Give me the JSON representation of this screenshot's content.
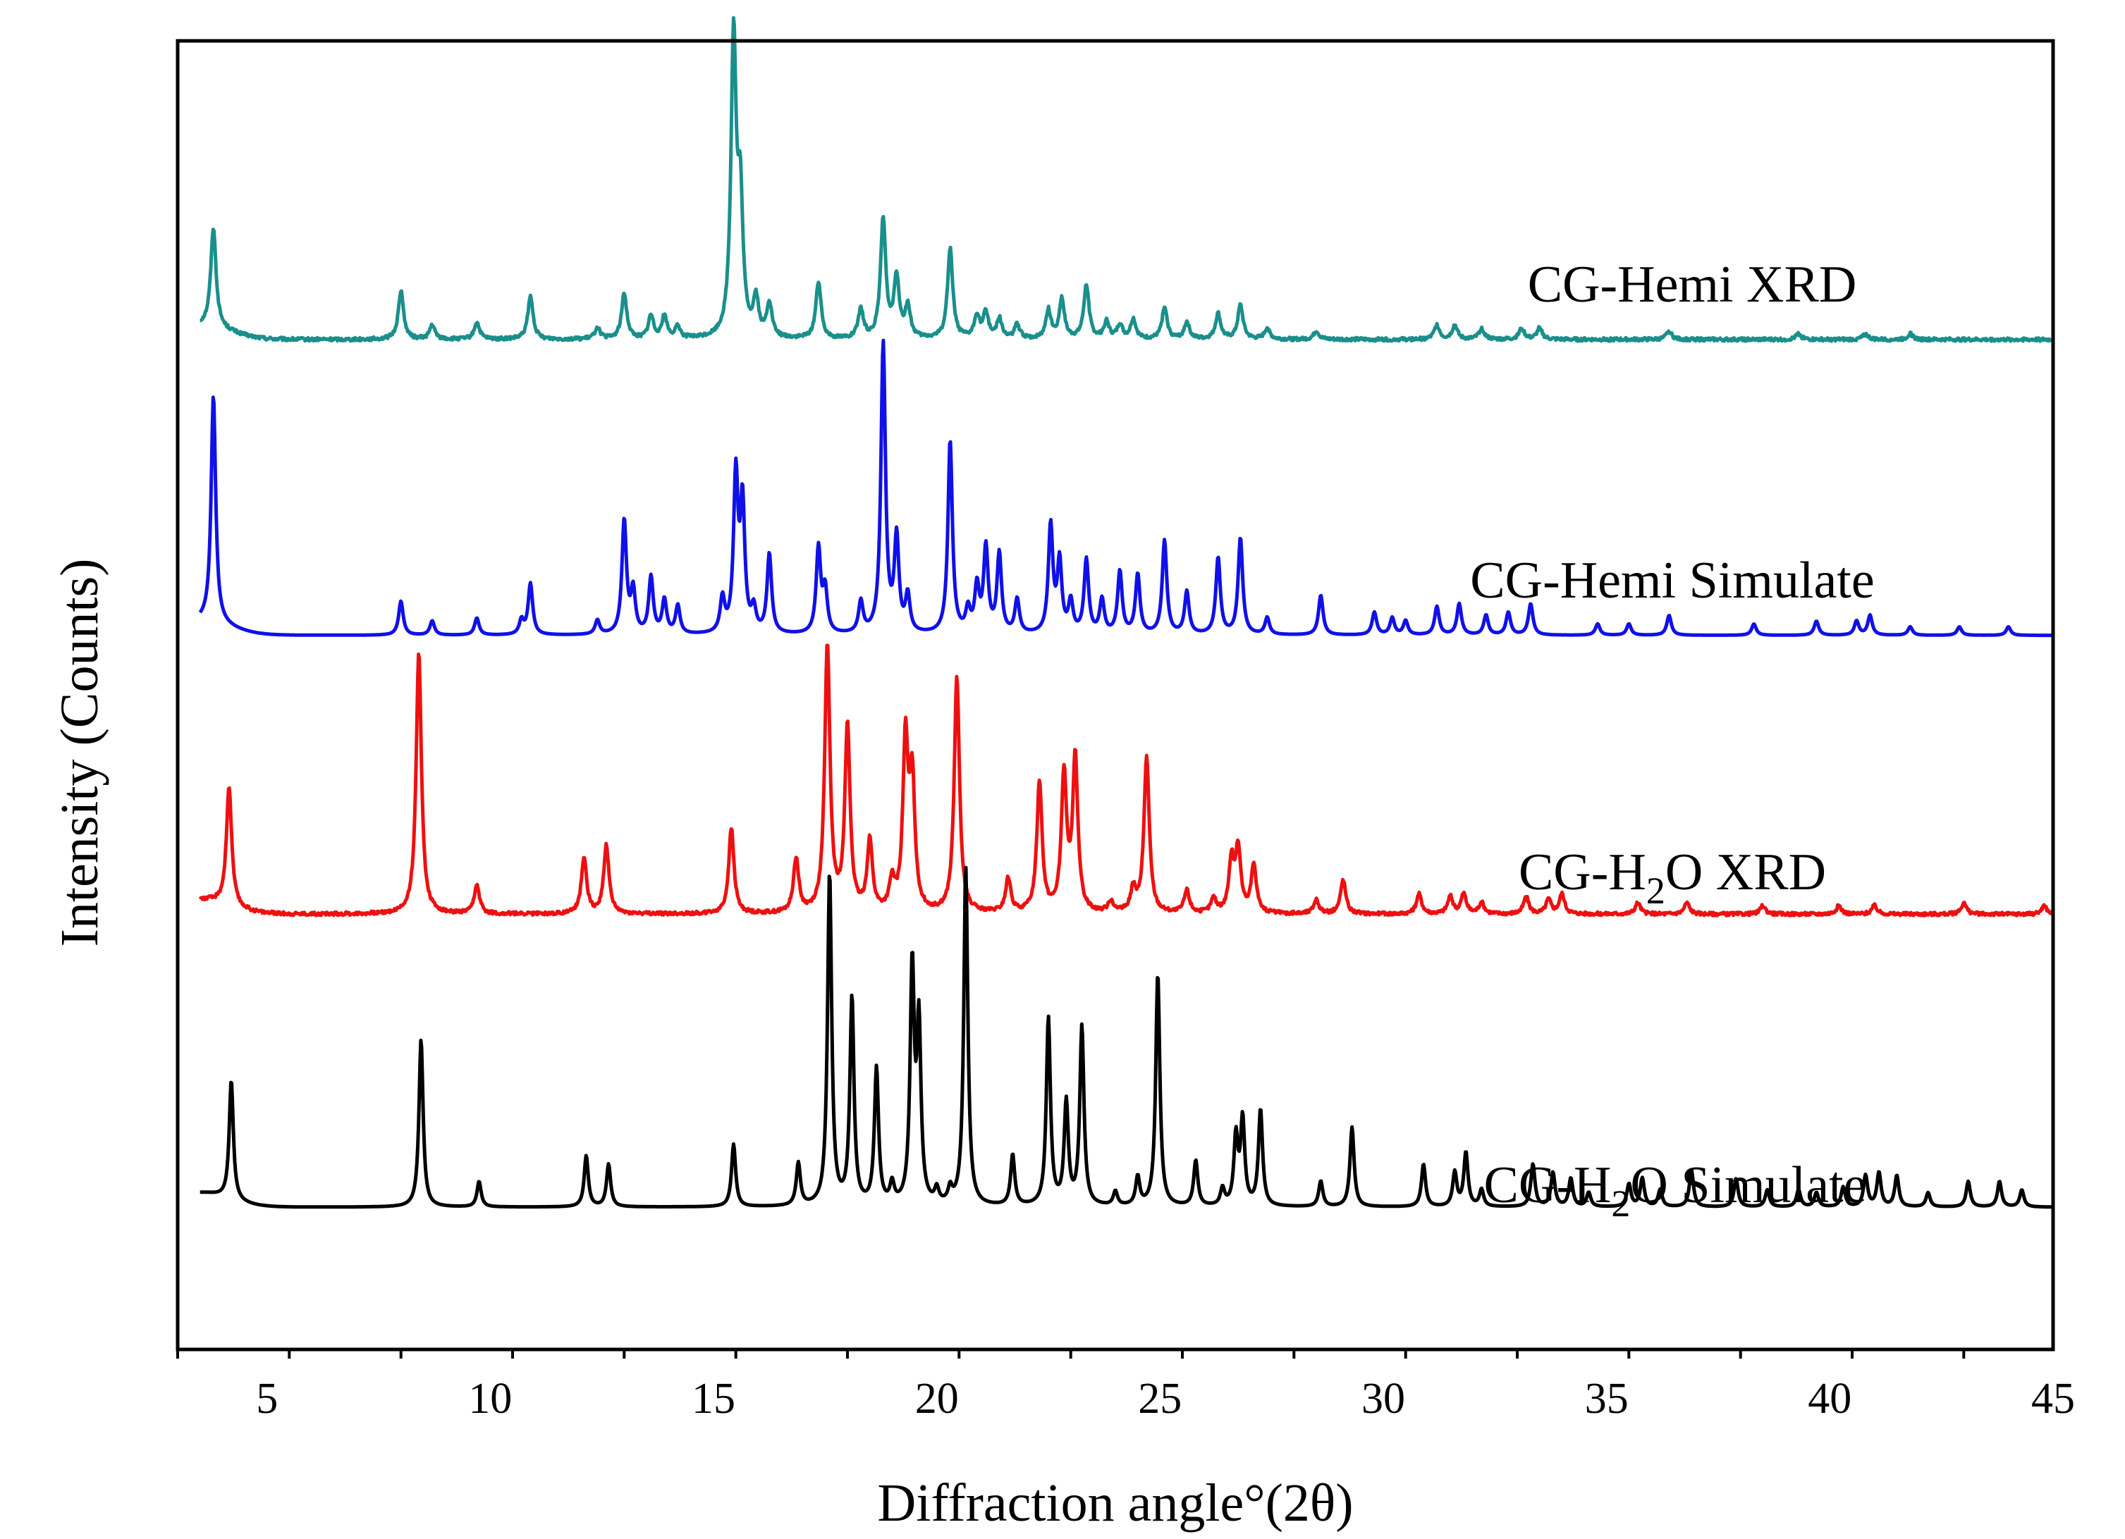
{
  "chart_data": {
    "type": "line",
    "title": "",
    "xlabel": "Diffraction angle°(2θ)",
    "ylabel": "Intensity (Counts)",
    "xlim": [
      3,
      45
    ],
    "ylim": [
      0,
      4.6
    ],
    "x_ticks": [
      5,
      10,
      15,
      20,
      25,
      30,
      35,
      40,
      45
    ],
    "x_tick_labels": [
      "5",
      "10",
      "15",
      "20",
      "25",
      "30",
      "35",
      "40",
      "45"
    ],
    "y_ticks_shown": false,
    "legend": "inline labels to the right of each trace",
    "series": [
      {
        "name": "CG-Hemi XRD",
        "label_main": "CG-Hemi XRD",
        "color": "#1a8f8c",
        "baseline": 3.55,
        "peak_width": 0.07,
        "peaks": [
          [
            3.8,
            0.35
          ],
          [
            8.0,
            0.17
          ],
          [
            8.7,
            0.05
          ],
          [
            9.7,
            0.06
          ],
          [
            10.9,
            0.15
          ],
          [
            12.4,
            0.04
          ],
          [
            13.0,
            0.16
          ],
          [
            13.6,
            0.08
          ],
          [
            13.9,
            0.08
          ],
          [
            14.2,
            0.04
          ],
          [
            15.45,
            1.05
          ],
          [
            15.6,
            0.45
          ],
          [
            15.95,
            0.13
          ],
          [
            16.25,
            0.12
          ],
          [
            17.35,
            0.2
          ],
          [
            18.3,
            0.1
          ],
          [
            18.8,
            0.42
          ],
          [
            19.1,
            0.21
          ],
          [
            19.35,
            0.11
          ],
          [
            20.3,
            0.32
          ],
          [
            20.9,
            0.08
          ],
          [
            21.1,
            0.09
          ],
          [
            21.4,
            0.07
          ],
          [
            21.8,
            0.05
          ],
          [
            22.5,
            0.1
          ],
          [
            22.8,
            0.14
          ],
          [
            23.35,
            0.19
          ],
          [
            23.8,
            0.06
          ],
          [
            24.1,
            0.05
          ],
          [
            24.4,
            0.07
          ],
          [
            25.1,
            0.11
          ],
          [
            25.6,
            0.06
          ],
          [
            26.3,
            0.09
          ],
          [
            26.8,
            0.12
          ],
          [
            27.4,
            0.04
          ],
          [
            28.5,
            0.03
          ],
          [
            31.2,
            0.05
          ],
          [
            31.6,
            0.05
          ],
          [
            32.2,
            0.04
          ],
          [
            33.1,
            0.04
          ],
          [
            33.5,
            0.04
          ],
          [
            36.4,
            0.03
          ],
          [
            39.3,
            0.02
          ],
          [
            40.8,
            0.02
          ],
          [
            41.8,
            0.02
          ]
        ]
      },
      {
        "name": "CG-Hemi Simulate",
        "label_main": "CG-Hemi Simulate",
        "color": "#1010e8",
        "baseline": 2.51,
        "peak_width": 0.06,
        "peaks": [
          [
            3.8,
            0.8
          ],
          [
            8.0,
            0.12
          ],
          [
            8.7,
            0.05
          ],
          [
            9.7,
            0.06
          ],
          [
            10.7,
            0.05
          ],
          [
            10.9,
            0.18
          ],
          [
            12.4,
            0.05
          ],
          [
            13.0,
            0.4
          ],
          [
            13.2,
            0.15
          ],
          [
            13.6,
            0.2
          ],
          [
            13.9,
            0.12
          ],
          [
            14.2,
            0.1
          ],
          [
            15.2,
            0.12
          ],
          [
            15.5,
            0.55
          ],
          [
            15.65,
            0.45
          ],
          [
            15.9,
            0.08
          ],
          [
            16.25,
            0.28
          ],
          [
            17.35,
            0.3
          ],
          [
            17.5,
            0.15
          ],
          [
            18.3,
            0.11
          ],
          [
            18.8,
            1.02
          ],
          [
            19.1,
            0.33
          ],
          [
            19.35,
            0.13
          ],
          [
            20.3,
            0.68
          ],
          [
            20.7,
            0.08
          ],
          [
            20.9,
            0.16
          ],
          [
            21.1,
            0.3
          ],
          [
            21.4,
            0.28
          ],
          [
            21.8,
            0.12
          ],
          [
            22.55,
            0.38
          ],
          [
            22.75,
            0.25
          ],
          [
            23.0,
            0.11
          ],
          [
            23.35,
            0.26
          ],
          [
            23.7,
            0.12
          ],
          [
            24.1,
            0.22
          ],
          [
            24.5,
            0.21
          ],
          [
            25.1,
            0.33
          ],
          [
            25.6,
            0.15
          ],
          [
            26.3,
            0.27
          ],
          [
            26.8,
            0.34
          ],
          [
            27.4,
            0.06
          ],
          [
            28.6,
            0.14
          ],
          [
            29.8,
            0.08
          ],
          [
            30.2,
            0.06
          ],
          [
            30.5,
            0.05
          ],
          [
            31.2,
            0.1
          ],
          [
            31.7,
            0.11
          ],
          [
            32.3,
            0.07
          ],
          [
            32.8,
            0.08
          ],
          [
            33.3,
            0.11
          ],
          [
            34.8,
            0.04
          ],
          [
            35.5,
            0.04
          ],
          [
            36.4,
            0.07
          ],
          [
            38.3,
            0.04
          ],
          [
            39.7,
            0.05
          ],
          [
            40.6,
            0.05
          ],
          [
            40.9,
            0.07
          ],
          [
            41.8,
            0.03
          ],
          [
            42.9,
            0.03
          ],
          [
            44.0,
            0.03
          ]
        ]
      },
      {
        "name": "CG-H2O XRD",
        "label_pre": "CG-H",
        "label_sub": "2",
        "label_post": "O XRD",
        "color": "#ee1010",
        "baseline": 1.53,
        "peak_width": 0.07,
        "peaks": [
          [
            4.15,
            0.42
          ],
          [
            8.4,
            0.92
          ],
          [
            9.7,
            0.1
          ],
          [
            12.1,
            0.2
          ],
          [
            12.6,
            0.24
          ],
          [
            15.4,
            0.3
          ],
          [
            16.85,
            0.19
          ],
          [
            17.55,
            0.94
          ],
          [
            18.0,
            0.65
          ],
          [
            18.5,
            0.25
          ],
          [
            19.0,
            0.1
          ],
          [
            19.3,
            0.59
          ],
          [
            19.45,
            0.45
          ],
          [
            20.45,
            0.83
          ],
          [
            21.6,
            0.12
          ],
          [
            22.3,
            0.46
          ],
          [
            22.85,
            0.48
          ],
          [
            23.1,
            0.54
          ],
          [
            23.9,
            0.04
          ],
          [
            24.4,
            0.08
          ],
          [
            24.7,
            0.55
          ],
          [
            25.6,
            0.08
          ],
          [
            26.2,
            0.05
          ],
          [
            26.6,
            0.18
          ],
          [
            26.75,
            0.22
          ],
          [
            27.1,
            0.17
          ],
          [
            28.5,
            0.05
          ],
          [
            29.1,
            0.12
          ],
          [
            30.8,
            0.07
          ],
          [
            31.5,
            0.06
          ],
          [
            31.8,
            0.07
          ],
          [
            32.2,
            0.04
          ],
          [
            33.2,
            0.06
          ],
          [
            33.7,
            0.05
          ],
          [
            34.0,
            0.07
          ],
          [
            35.7,
            0.04
          ],
          [
            36.8,
            0.04
          ],
          [
            38.5,
            0.03
          ],
          [
            40.2,
            0.03
          ],
          [
            41.0,
            0.03
          ],
          [
            43.0,
            0.04
          ],
          [
            44.8,
            0.03
          ]
        ]
      },
      {
        "name": "CG-H2O Simulate",
        "label_pre": "CG-H",
        "label_sub": "2",
        "label_post": "O Simulate",
        "color": "#000000",
        "baseline": 0.5,
        "peak_width": 0.055,
        "peaks": [
          [
            4.2,
            0.42
          ],
          [
            8.45,
            0.59
          ],
          [
            9.75,
            0.09
          ],
          [
            12.15,
            0.18
          ],
          [
            12.65,
            0.15
          ],
          [
            15.45,
            0.22
          ],
          [
            16.9,
            0.15
          ],
          [
            17.6,
            1.17
          ],
          [
            18.1,
            0.73
          ],
          [
            18.65,
            0.48
          ],
          [
            19.0,
            0.07
          ],
          [
            19.45,
            0.83
          ],
          [
            19.6,
            0.62
          ],
          [
            20.0,
            0.05
          ],
          [
            20.3,
            0.05
          ],
          [
            20.65,
            1.19
          ],
          [
            21.7,
            0.18
          ],
          [
            22.5,
            0.66
          ],
          [
            22.9,
            0.36
          ],
          [
            23.25,
            0.63
          ],
          [
            24.0,
            0.05
          ],
          [
            24.5,
            0.1
          ],
          [
            24.95,
            0.82
          ],
          [
            25.8,
            0.16
          ],
          [
            26.4,
            0.06
          ],
          [
            26.7,
            0.24
          ],
          [
            26.85,
            0.3
          ],
          [
            27.25,
            0.34
          ],
          [
            28.6,
            0.09
          ],
          [
            29.3,
            0.28
          ],
          [
            30.9,
            0.15
          ],
          [
            31.6,
            0.12
          ],
          [
            31.85,
            0.19
          ],
          [
            32.2,
            0.06
          ],
          [
            33.35,
            0.15
          ],
          [
            33.8,
            0.12
          ],
          [
            34.2,
            0.1
          ],
          [
            34.6,
            0.05
          ],
          [
            35.5,
            0.08
          ],
          [
            35.8,
            0.1
          ],
          [
            36.2,
            0.06
          ],
          [
            36.9,
            0.13
          ],
          [
            37.9,
            0.1
          ],
          [
            38.6,
            0.06
          ],
          [
            39.3,
            0.06
          ],
          [
            39.7,
            0.05
          ],
          [
            40.3,
            0.07
          ],
          [
            40.8,
            0.11
          ],
          [
            41.1,
            0.12
          ],
          [
            41.5,
            0.11
          ],
          [
            42.2,
            0.05
          ],
          [
            43.1,
            0.09
          ],
          [
            43.8,
            0.09
          ],
          [
            44.3,
            0.06
          ]
        ]
      }
    ]
  }
}
